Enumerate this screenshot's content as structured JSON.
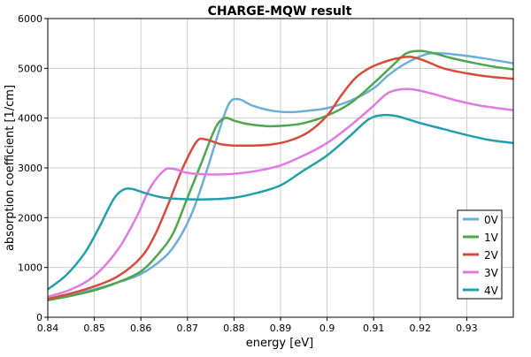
{
  "chart_data": {
    "type": "line",
    "title": "CHARGE-MQW result",
    "xlabel": "energy [eV]",
    "ylabel": "absorption coefficient [1/cm]",
    "xlim": [
      0.84,
      0.94
    ],
    "ylim": [
      0,
      6000
    ],
    "xticks": [
      0.84,
      0.85,
      0.86,
      0.87,
      0.88,
      0.89,
      0.9,
      0.91,
      0.92,
      0.93
    ],
    "xtick_labels": [
      "0.84",
      "0.85",
      "0.86",
      "0.87",
      "0.88",
      "0.89",
      "0.9",
      "0.91",
      "0.92",
      "0.93"
    ],
    "yticks": [
      0,
      1000,
      2000,
      3000,
      4000,
      5000,
      6000
    ],
    "ytick_labels": [
      "0",
      "1000",
      "2000",
      "3000",
      "4000",
      "5000",
      "6000"
    ],
    "grid": true,
    "legend_position": "bottom-right",
    "series": [
      {
        "name": "0V",
        "color": "#6baed6",
        "x": [
          0.84,
          0.845,
          0.85,
          0.855,
          0.86,
          0.865,
          0.868,
          0.871,
          0.874,
          0.877,
          0.879,
          0.881,
          0.884,
          0.888,
          0.892,
          0.896,
          0.9,
          0.905,
          0.91,
          0.913,
          0.916,
          0.919,
          0.922,
          0.925,
          0.93,
          0.935,
          0.94
        ],
        "y": [
          350,
          450,
          560,
          700,
          870,
          1200,
          1550,
          2100,
          2900,
          3800,
          4300,
          4380,
          4250,
          4150,
          4120,
          4150,
          4200,
          4350,
          4600,
          4850,
          5050,
          5200,
          5300,
          5300,
          5250,
          5180,
          5100
        ]
      },
      {
        "name": "1V",
        "color": "#4da64d",
        "x": [
          0.84,
          0.845,
          0.85,
          0.855,
          0.86,
          0.864,
          0.867,
          0.87,
          0.873,
          0.876,
          0.878,
          0.88,
          0.883,
          0.887,
          0.891,
          0.895,
          0.9,
          0.905,
          0.91,
          0.914,
          0.917,
          0.92,
          0.923,
          0.927,
          0.932,
          0.936,
          0.94
        ],
        "y": [
          340,
          430,
          540,
          700,
          920,
          1300,
          1700,
          2400,
          3100,
          3800,
          4000,
          3950,
          3880,
          3840,
          3850,
          3900,
          4050,
          4300,
          4700,
          5050,
          5300,
          5350,
          5300,
          5200,
          5100,
          5030,
          4980
        ]
      },
      {
        "name": "2V",
        "color": "#d94a3c",
        "x": [
          0.84,
          0.845,
          0.85,
          0.855,
          0.86,
          0.863,
          0.866,
          0.869,
          0.872,
          0.874,
          0.877,
          0.88,
          0.884,
          0.888,
          0.892,
          0.896,
          0.9,
          0.903,
          0.906,
          0.909,
          0.912,
          0.915,
          0.918,
          0.921,
          0.925,
          0.93,
          0.935,
          0.94
        ],
        "y": [
          370,
          480,
          620,
          820,
          1200,
          1650,
          2300,
          3000,
          3530,
          3570,
          3480,
          3450,
          3450,
          3470,
          3550,
          3720,
          4050,
          4450,
          4800,
          5000,
          5120,
          5200,
          5230,
          5150,
          5000,
          4900,
          4830,
          4790
        ]
      },
      {
        "name": "3V",
        "color": "#e07be0",
        "x": [
          0.84,
          0.845,
          0.85,
          0.855,
          0.859,
          0.862,
          0.865,
          0.867,
          0.87,
          0.874,
          0.878,
          0.882,
          0.886,
          0.89,
          0.895,
          0.9,
          0.905,
          0.91,
          0.913,
          0.916,
          0.919,
          0.923,
          0.928,
          0.933,
          0.94
        ],
        "y": [
          410,
          560,
          830,
          1350,
          2000,
          2600,
          2950,
          2980,
          2900,
          2870,
          2870,
          2900,
          2960,
          3050,
          3250,
          3500,
          3850,
          4250,
          4500,
          4580,
          4570,
          4480,
          4350,
          4250,
          4160
        ]
      },
      {
        "name": "4V",
        "color": "#21a0ab",
        "x": [
          0.84,
          0.844,
          0.848,
          0.851,
          0.854,
          0.856,
          0.858,
          0.861,
          0.865,
          0.87,
          0.875,
          0.88,
          0.885,
          0.89,
          0.895,
          0.9,
          0.905,
          0.909,
          0.912,
          0.915,
          0.92,
          0.925,
          0.93,
          0.935,
          0.94
        ],
        "y": [
          560,
          850,
          1300,
          1800,
          2350,
          2550,
          2580,
          2490,
          2400,
          2370,
          2370,
          2400,
          2500,
          2650,
          2950,
          3250,
          3650,
          3980,
          4060,
          4040,
          3900,
          3780,
          3660,
          3560,
          3500
        ]
      }
    ]
  }
}
